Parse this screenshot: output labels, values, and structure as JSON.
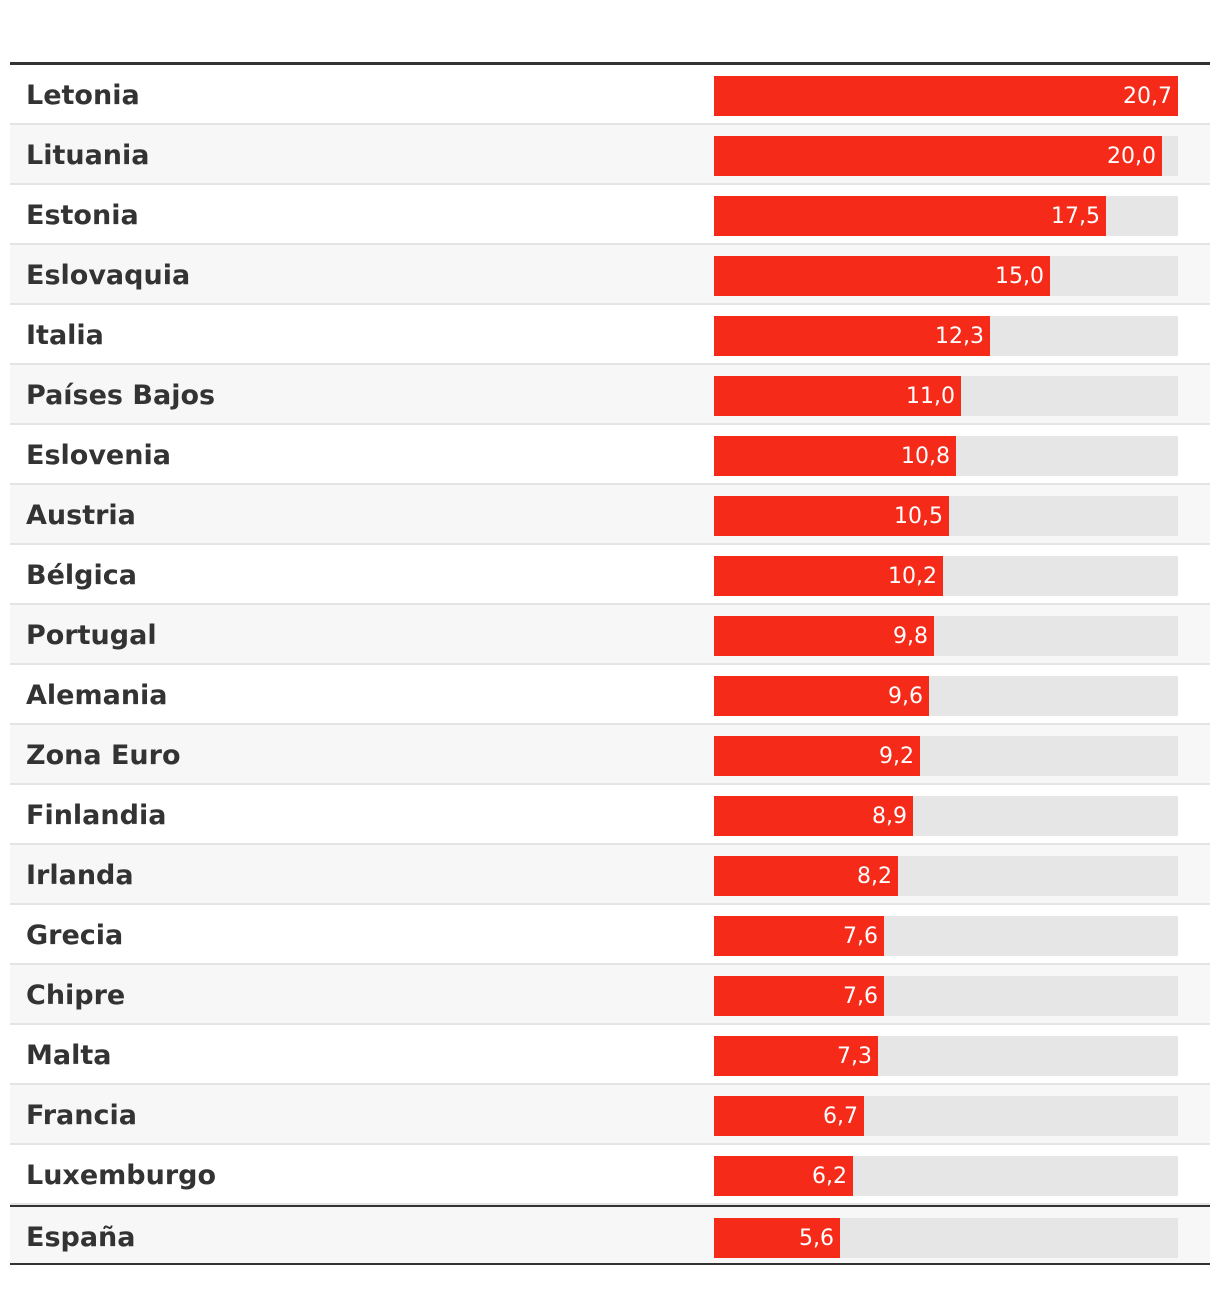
{
  "chart_data": {
    "type": "bar",
    "orientation": "horizontal",
    "title": "",
    "xlabel": "",
    "ylabel": "",
    "xlim": [
      0,
      20.7
    ],
    "categories": [
      "Letonia",
      "Lituania",
      "Estonia",
      "Eslovaquia",
      "Italia",
      "Países Bajos",
      "Eslovenia",
      "Austria",
      "Bélgica",
      "Portugal",
      "Alemania",
      "Zona Euro",
      "Finlandia",
      "Irlanda",
      "Grecia",
      "Chipre",
      "Malta",
      "Francia",
      "Luxemburgo",
      "España"
    ],
    "values": [
      20.7,
      20.0,
      17.5,
      15.0,
      12.3,
      11.0,
      10.8,
      10.5,
      10.2,
      9.8,
      9.6,
      9.2,
      8.9,
      8.2,
      7.6,
      7.6,
      7.3,
      6.7,
      6.2,
      5.6
    ],
    "value_labels": [
      "20,7",
      "20,0",
      "17,5",
      "15,0",
      "12,3",
      "11,0",
      "10,8",
      "10,5",
      "10,2",
      "9,8",
      "9,6",
      "9,2",
      "8,9",
      "8,2",
      "7,6",
      "7,6",
      "7,3",
      "6,7",
      "6,2",
      "5,6"
    ],
    "highlight_category": "España",
    "colors": {
      "bar": "#f52a19",
      "track": "#e6e6e6",
      "text": "#333333"
    }
  }
}
